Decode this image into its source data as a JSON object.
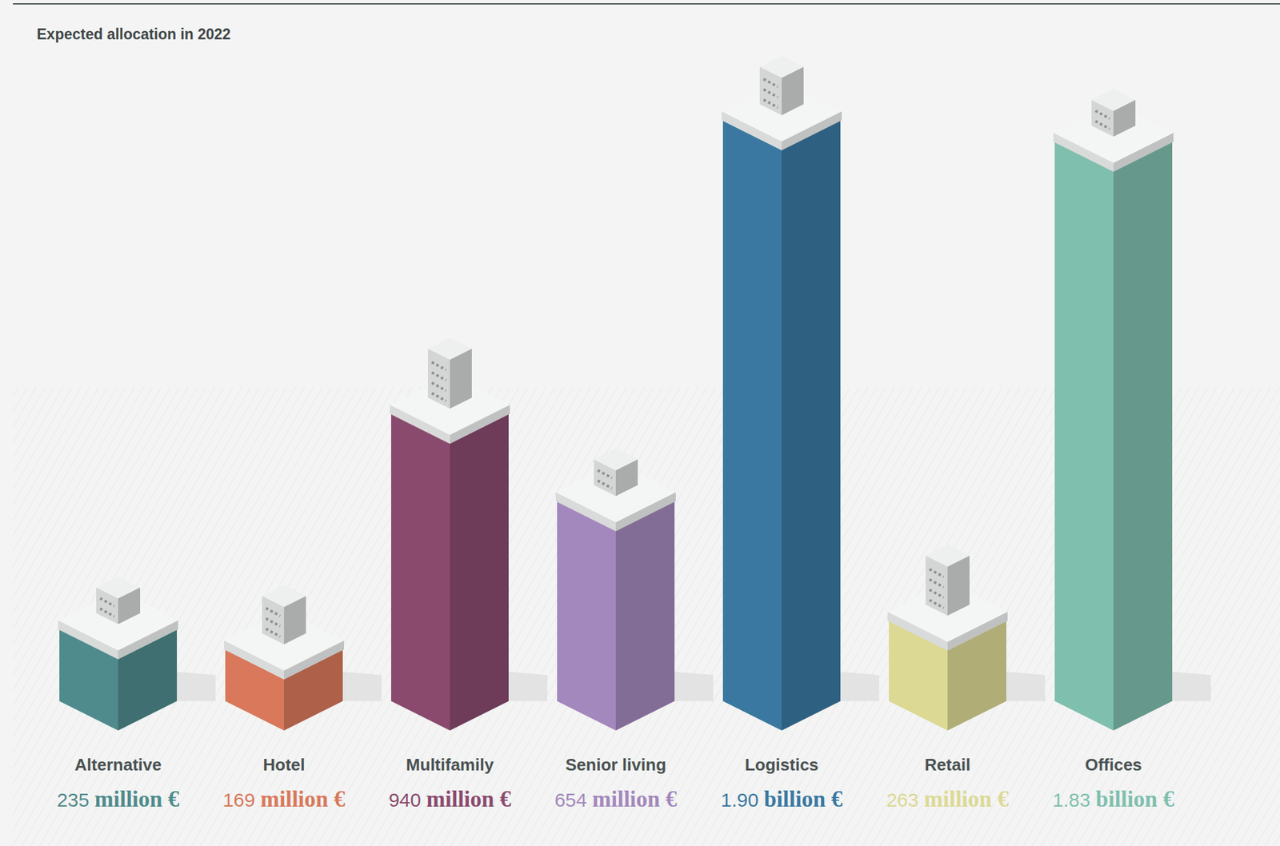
{
  "chart_data": {
    "type": "bar",
    "title": "Expected allocation in 2022",
    "categories": [
      "Alternative",
      "Hotel",
      "Multifamily",
      "Senior living",
      "Logistics",
      "Retail",
      "Offices"
    ],
    "values": [
      235,
      169,
      940,
      654,
      1900,
      263,
      1830
    ],
    "value_labels": [
      "235 million €",
      "169 million €",
      "940 million €",
      "654 million €",
      "1.90 billion €",
      "263 million €",
      "1.83 billion €"
    ],
    "colors": [
      "#4f8b8c",
      "#d9785a",
      "#8a4a6e",
      "#a388bd",
      "#3a78a1",
      "#dcd994",
      "#7fbfae"
    ],
    "data_labels": true,
    "tick_labels": "x"
  }
}
